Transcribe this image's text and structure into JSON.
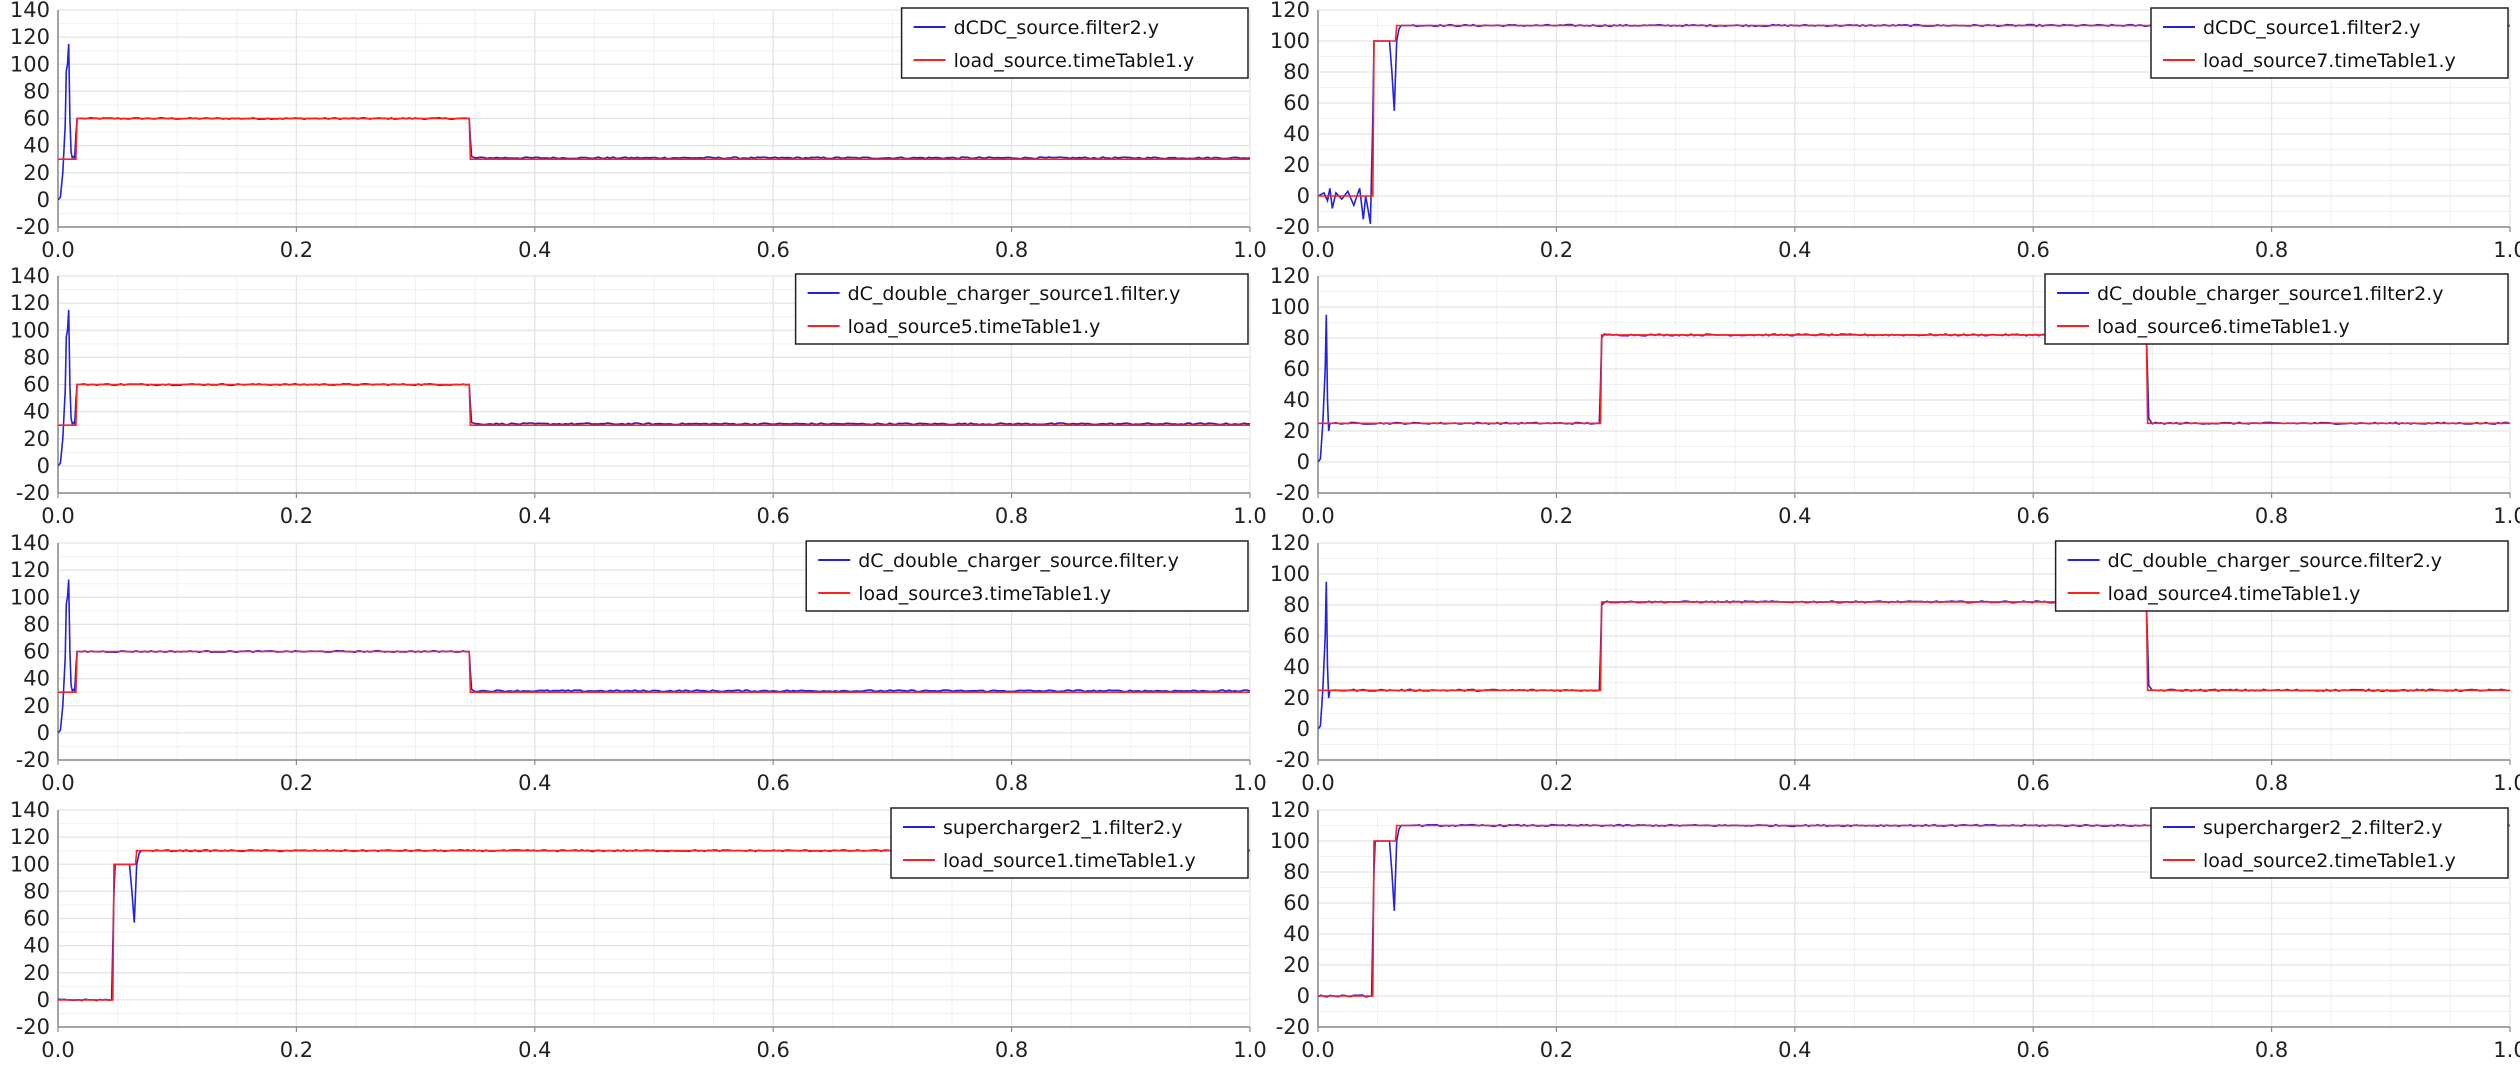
{
  "colors": {
    "blue": "#2222e0",
    "red": "#ff2020",
    "grid": "#e4e4e4",
    "axis": "#888888",
    "legend_border": "#222222"
  },
  "chart_data": [
    {
      "type": "line",
      "x_ticks": [
        "0.0",
        "0.2",
        "0.4",
        "0.6",
        "0.8",
        "1.0"
      ],
      "y_ticks": [
        "-20",
        "0",
        "20",
        "40",
        "60",
        "80",
        "100",
        "120",
        "140"
      ],
      "xlim": [
        0,
        1
      ],
      "ylim": [
        -20,
        140
      ],
      "grid": true,
      "legend": "top-right",
      "series": [
        {
          "name": "dCDC_source.filter2.y",
          "color": "blue",
          "x": [
            0,
            0.002,
            0.004,
            0.006,
            0.007,
            0.008,
            0.009,
            0.01,
            0.011,
            0.012,
            0.013,
            0.014,
            0.015,
            0.016,
            0.018,
            0.02,
            0.345,
            0.346,
            0.347,
            0.35,
            1.0
          ],
          "y": [
            0,
            2,
            20,
            55,
            95,
            100,
            115,
            60,
            35,
            31,
            32,
            31,
            48,
            60,
            60,
            60,
            60,
            45,
            32,
            31,
            31
          ]
        },
        {
          "name": "load_source.timeTable1.y",
          "color": "red",
          "x": [
            0,
            0.015,
            0.016,
            0.345,
            0.346,
            1.0
          ],
          "y": [
            30,
            30,
            60,
            60,
            30,
            30
          ]
        }
      ]
    },
    {
      "type": "line",
      "x_ticks": [
        "0.0",
        "0.2",
        "0.4",
        "0.6",
        "0.8",
        "1.0"
      ],
      "y_ticks": [
        "-20",
        "0",
        "20",
        "40",
        "60",
        "80",
        "100",
        "120"
      ],
      "xlim": [
        0,
        1
      ],
      "ylim": [
        -20,
        120
      ],
      "grid": true,
      "legend": "top-right",
      "series": [
        {
          "name": "dCDC_source1.filter2.y",
          "color": "blue",
          "x": [
            0,
            0.005,
            0.008,
            0.01,
            0.012,
            0.015,
            0.02,
            0.025,
            0.03,
            0.035,
            0.038,
            0.04,
            0.044,
            0.046,
            0.047,
            0.05,
            0.06,
            0.062,
            0.064,
            0.066,
            0.068,
            0.07,
            0.08,
            0.1,
            1.0
          ],
          "y": [
            0,
            2,
            -3,
            5,
            -8,
            2,
            -2,
            3,
            -6,
            5,
            -15,
            0,
            -18,
            50,
            100,
            100,
            100,
            80,
            55,
            100,
            108,
            110,
            110,
            110,
            110
          ]
        },
        {
          "name": "load_source7.timeTable1.y",
          "color": "red",
          "x": [
            0,
            0.046,
            0.047,
            0.065,
            0.066,
            1.0
          ],
          "y": [
            0,
            0,
            100,
            100,
            110,
            110
          ]
        }
      ]
    },
    {
      "type": "line",
      "x_ticks": [
        "0.0",
        "0.2",
        "0.4",
        "0.6",
        "0.8",
        "1.0"
      ],
      "y_ticks": [
        "-20",
        "0",
        "20",
        "40",
        "60",
        "80",
        "100",
        "120",
        "140"
      ],
      "xlim": [
        0,
        1
      ],
      "ylim": [
        -20,
        140
      ],
      "grid": true,
      "legend": "top-right",
      "series": [
        {
          "name": "dC_double_charger_source1.filter.y",
          "color": "blue",
          "x": [
            0,
            0.002,
            0.004,
            0.006,
            0.007,
            0.008,
            0.009,
            0.01,
            0.011,
            0.012,
            0.013,
            0.014,
            0.015,
            0.016,
            0.018,
            0.02,
            0.345,
            0.346,
            0.347,
            0.35,
            1.0
          ],
          "y": [
            0,
            2,
            20,
            55,
            95,
            100,
            115,
            60,
            35,
            31,
            32,
            31,
            48,
            60,
            60,
            60,
            60,
            45,
            32,
            31,
            31
          ]
        },
        {
          "name": "load_source5.timeTable1.y",
          "color": "red",
          "x": [
            0,
            0.015,
            0.016,
            0.345,
            0.346,
            1.0
          ],
          "y": [
            30,
            30,
            60,
            60,
            30,
            30
          ]
        }
      ]
    },
    {
      "type": "line",
      "x_ticks": [
        "0.0",
        "0.2",
        "0.4",
        "0.6",
        "0.8",
        "1.0"
      ],
      "y_ticks": [
        "-20",
        "0",
        "20",
        "40",
        "60",
        "80",
        "100",
        "120"
      ],
      "xlim": [
        0,
        1
      ],
      "ylim": [
        -20,
        120
      ],
      "grid": true,
      "legend": "top-right",
      "series": [
        {
          "name": "dC_double_charger_source1.filter2.y",
          "color": "blue",
          "x": [
            0,
            0.002,
            0.004,
            0.006,
            0.007,
            0.008,
            0.009,
            0.01,
            0.012,
            0.015,
            0.236,
            0.237,
            0.238,
            0.24,
            0.695,
            0.696,
            0.697,
            0.7,
            1.0
          ],
          "y": [
            0,
            2,
            25,
            60,
            95,
            40,
            20,
            25,
            25,
            25,
            25,
            50,
            80,
            82,
            82,
            55,
            28,
            25,
            25
          ]
        },
        {
          "name": "load_source6.timeTable1.y",
          "color": "red",
          "x": [
            0,
            0.237,
            0.238,
            0.695,
            0.696,
            1.0
          ],
          "y": [
            25,
            25,
            82,
            82,
            25,
            25
          ]
        }
      ]
    },
    {
      "type": "line",
      "x_ticks": [
        "0.0",
        "0.2",
        "0.4",
        "0.6",
        "0.8",
        "1.0"
      ],
      "y_ticks": [
        "-20",
        "0",
        "20",
        "40",
        "60",
        "80",
        "100",
        "120",
        "140"
      ],
      "xlim": [
        0,
        1
      ],
      "ylim": [
        -20,
        140
      ],
      "grid": true,
      "legend": "top-right",
      "series": [
        {
          "name": "dC_double_charger_source.filter.y",
          "color": "blue",
          "x": [
            0,
            0.002,
            0.004,
            0.006,
            0.007,
            0.008,
            0.009,
            0.01,
            0.011,
            0.012,
            0.013,
            0.014,
            0.015,
            0.016,
            0.018,
            0.02,
            0.345,
            0.346,
            0.347,
            0.35,
            1.0
          ],
          "y": [
            0,
            2,
            20,
            55,
            95,
            100,
            113,
            60,
            35,
            31,
            32,
            31,
            48,
            60,
            60,
            60,
            60,
            45,
            32,
            31,
            31
          ]
        },
        {
          "name": "load_source3.timeTable1.y",
          "color": "red",
          "x": [
            0,
            0.015,
            0.016,
            0.345,
            0.346,
            1.0
          ],
          "y": [
            30,
            30,
            60,
            60,
            30,
            30
          ]
        }
      ]
    },
    {
      "type": "line",
      "x_ticks": [
        "0.0",
        "0.2",
        "0.4",
        "0.6",
        "0.8",
        "1.0"
      ],
      "y_ticks": [
        "-20",
        "0",
        "20",
        "40",
        "60",
        "80",
        "100",
        "120"
      ],
      "xlim": [
        0,
        1
      ],
      "ylim": [
        -20,
        120
      ],
      "grid": true,
      "legend": "top-right",
      "series": [
        {
          "name": "dC_double_charger_source.filter2.y",
          "color": "blue",
          "x": [
            0,
            0.002,
            0.004,
            0.006,
            0.007,
            0.008,
            0.009,
            0.01,
            0.012,
            0.015,
            0.236,
            0.237,
            0.238,
            0.24,
            0.695,
            0.696,
            0.697,
            0.7,
            1.0
          ],
          "y": [
            0,
            2,
            25,
            60,
            95,
            40,
            20,
            25,
            25,
            25,
            25,
            50,
            80,
            82,
            82,
            55,
            28,
            25,
            25
          ]
        },
        {
          "name": "load_source4.timeTable1.y",
          "color": "red",
          "x": [
            0,
            0.237,
            0.238,
            0.695,
            0.696,
            1.0
          ],
          "y": [
            25,
            25,
            82,
            82,
            25,
            25
          ]
        }
      ]
    },
    {
      "type": "line",
      "x_ticks": [
        "0.0",
        "0.2",
        "0.4",
        "0.6",
        "0.8",
        "1.0"
      ],
      "y_ticks": [
        "-20",
        "0",
        "20",
        "40",
        "60",
        "80",
        "100",
        "120",
        "140"
      ],
      "xlim": [
        0,
        1
      ],
      "ylim": [
        -20,
        140
      ],
      "grid": true,
      "legend": "top-right",
      "series": [
        {
          "name": "supercharger2_1.filter2.y",
          "color": "blue",
          "x": [
            0,
            0.045,
            0.046,
            0.047,
            0.048,
            0.05,
            0.06,
            0.062,
            0.064,
            0.066,
            0.068,
            0.07,
            0.08,
            0.1,
            1.0
          ],
          "y": [
            0,
            0,
            40,
            80,
            100,
            100,
            100,
            80,
            57,
            100,
            108,
            110,
            110,
            110,
            110
          ]
        },
        {
          "name": "load_source1.timeTable1.y",
          "color": "red",
          "x": [
            0,
            0.046,
            0.047,
            0.065,
            0.066,
            1.0
          ],
          "y": [
            0,
            0,
            100,
            100,
            110,
            110
          ]
        }
      ]
    },
    {
      "type": "line",
      "x_ticks": [
        "0.0",
        "0.2",
        "0.4",
        "0.6",
        "0.8",
        "1.0"
      ],
      "y_ticks": [
        "-20",
        "0",
        "20",
        "40",
        "60",
        "80",
        "100",
        "120"
      ],
      "xlim": [
        0,
        1
      ],
      "ylim": [
        -20,
        120
      ],
      "grid": true,
      "legend": "top-right",
      "series": [
        {
          "name": "supercharger2_2.filter2.y",
          "color": "blue",
          "x": [
            0,
            0.045,
            0.046,
            0.047,
            0.048,
            0.05,
            0.06,
            0.062,
            0.064,
            0.066,
            0.068,
            0.07,
            0.08,
            0.1,
            1.0
          ],
          "y": [
            0,
            0,
            40,
            80,
            100,
            100,
            100,
            80,
            55,
            100,
            108,
            110,
            110,
            110,
            110
          ]
        },
        {
          "name": "load_source2.timeTable1.y",
          "color": "red",
          "x": [
            0,
            0.046,
            0.047,
            0.065,
            0.066,
            1.0
          ],
          "y": [
            0,
            0,
            100,
            100,
            110,
            110
          ]
        }
      ]
    }
  ]
}
